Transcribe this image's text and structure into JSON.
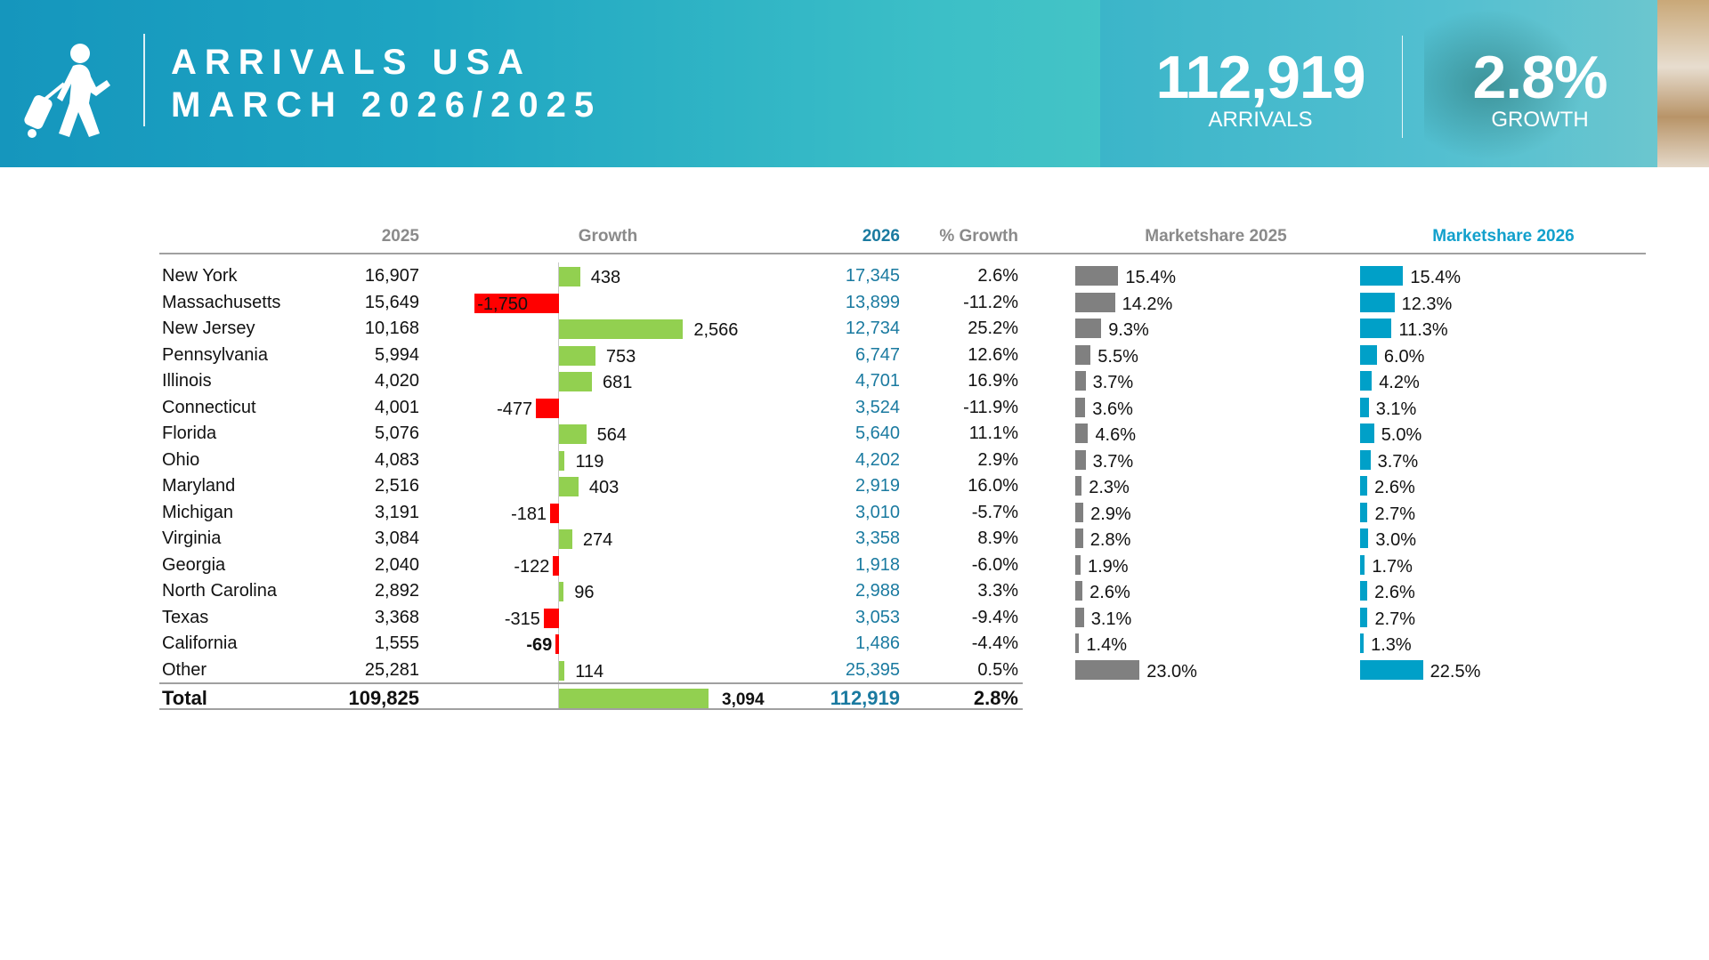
{
  "header": {
    "title_line1": "ARRIVALS USA",
    "title_line2": "MARCH 2026/2025",
    "icon": "traveler-with-suitcase-icon",
    "kpi_arrivals_value": "112,919",
    "kpi_arrivals_label": "ARRIVALS",
    "kpi_growth_value": "2.8%",
    "kpi_growth_label": "GROWTH"
  },
  "colors": {
    "positive": "#92d050",
    "negative": "#ff0000",
    "marketshare_2025": "#808080",
    "marketshare_2026": "#00a0c8",
    "value_2026": "#1a7aa0"
  },
  "table": {
    "columns": {
      "y2025": "2025",
      "growth": "Growth",
      "y2026": "2026",
      "pct_growth": "% Growth",
      "ms2025": "Marketshare 2025",
      "ms2026": "Marketshare 2026"
    },
    "rows": [
      {
        "name": "New York",
        "y2025": "16,907",
        "growth": 438,
        "growth_label": "438",
        "y2026": "17,345",
        "pct": "2.6%",
        "ms2025": 15.4,
        "ms2025_label": "15.4%",
        "ms2026": 15.4,
        "ms2026_label": "15.4%"
      },
      {
        "name": "Massachusetts",
        "y2025": "15,649",
        "growth": -1750,
        "growth_label": "-1,750",
        "y2026": "13,899",
        "pct": "-11.2%",
        "ms2025": 14.2,
        "ms2025_label": "14.2%",
        "ms2026": 12.3,
        "ms2026_label": "12.3%"
      },
      {
        "name": "New Jersey",
        "y2025": "10,168",
        "growth": 2566,
        "growth_label": "2,566",
        "y2026": "12,734",
        "pct": "25.2%",
        "ms2025": 9.3,
        "ms2025_label": "9.3%",
        "ms2026": 11.3,
        "ms2026_label": "11.3%"
      },
      {
        "name": "Pennsylvania",
        "y2025": "5,994",
        "growth": 753,
        "growth_label": "753",
        "y2026": "6,747",
        "pct": "12.6%",
        "ms2025": 5.5,
        "ms2025_label": "5.5%",
        "ms2026": 6.0,
        "ms2026_label": "6.0%"
      },
      {
        "name": "Illinois",
        "y2025": "4,020",
        "growth": 681,
        "growth_label": "681",
        "y2026": "4,701",
        "pct": "16.9%",
        "ms2025": 3.7,
        "ms2025_label": "3.7%",
        "ms2026": 4.2,
        "ms2026_label": "4.2%"
      },
      {
        "name": "Connecticut",
        "y2025": "4,001",
        "growth": -477,
        "growth_label": "-477",
        "y2026": "3,524",
        "pct": "-11.9%",
        "ms2025": 3.6,
        "ms2025_label": "3.6%",
        "ms2026": 3.1,
        "ms2026_label": "3.1%"
      },
      {
        "name": "Florida",
        "y2025": "5,076",
        "growth": 564,
        "growth_label": "564",
        "y2026": "5,640",
        "pct": "11.1%",
        "ms2025": 4.6,
        "ms2025_label": "4.6%",
        "ms2026": 5.0,
        "ms2026_label": "5.0%"
      },
      {
        "name": "Ohio",
        "y2025": "4,083",
        "growth": 119,
        "growth_label": "119",
        "y2026": "4,202",
        "pct": "2.9%",
        "ms2025": 3.7,
        "ms2025_label": "3.7%",
        "ms2026": 3.7,
        "ms2026_label": "3.7%"
      },
      {
        "name": "Maryland",
        "y2025": "2,516",
        "growth": 403,
        "growth_label": "403",
        "y2026": "2,919",
        "pct": "16.0%",
        "ms2025": 2.3,
        "ms2025_label": "2.3%",
        "ms2026": 2.6,
        "ms2026_label": "2.6%"
      },
      {
        "name": "Michigan",
        "y2025": "3,191",
        "growth": -181,
        "growth_label": "-181",
        "y2026": "3,010",
        "pct": "-5.7%",
        "ms2025": 2.9,
        "ms2025_label": "2.9%",
        "ms2026": 2.7,
        "ms2026_label": "2.7%"
      },
      {
        "name": "Virginia",
        "y2025": "3,084",
        "growth": 274,
        "growth_label": "274",
        "y2026": "3,358",
        "pct": "8.9%",
        "ms2025": 2.8,
        "ms2025_label": "2.8%",
        "ms2026": 3.0,
        "ms2026_label": "3.0%"
      },
      {
        "name": "Georgia",
        "y2025": "2,040",
        "growth": -122,
        "growth_label": "-122",
        "y2026": "1,918",
        "pct": "-6.0%",
        "ms2025": 1.9,
        "ms2025_label": "1.9%",
        "ms2026": 1.7,
        "ms2026_label": "1.7%"
      },
      {
        "name": "North Carolina",
        "y2025": "2,892",
        "growth": 96,
        "growth_label": "96",
        "y2026": "2,988",
        "pct": "3.3%",
        "ms2025": 2.6,
        "ms2025_label": "2.6%",
        "ms2026": 2.6,
        "ms2026_label": "2.6%"
      },
      {
        "name": "Texas",
        "y2025": "3,368",
        "growth": -315,
        "growth_label": "-315",
        "y2026": "3,053",
        "pct": "-9.4%",
        "ms2025": 3.1,
        "ms2025_label": "3.1%",
        "ms2026": 2.7,
        "ms2026_label": "2.7%"
      },
      {
        "name": "California",
        "y2025": "1,555",
        "growth": -69,
        "growth_label": "-69",
        "y2026": "1,486",
        "pct": "-4.4%",
        "ms2025": 1.4,
        "ms2025_label": "1.4%",
        "ms2026": 1.3,
        "ms2026_label": "1.3%"
      },
      {
        "name": "Other",
        "y2025": "25,281",
        "growth": 114,
        "growth_label": "114",
        "y2026": "25,395",
        "pct": "0.5%",
        "ms2025": 23.0,
        "ms2025_label": "23.0%",
        "ms2026": 22.5,
        "ms2026_label": "22.5%"
      }
    ],
    "total": {
      "name": "Total",
      "y2025": "109,825",
      "growth": 3094,
      "growth_label": "3,094",
      "y2026": "112,919",
      "pct": "2.8%"
    }
  }
}
